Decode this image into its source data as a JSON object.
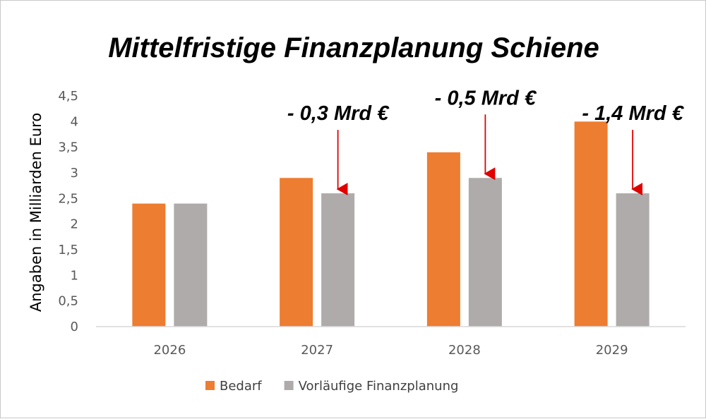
{
  "chart_data": {
    "type": "bar",
    "title": "Mittelfristige Finanzplanung Schiene",
    "ylabel": "Angaben in Milliarden Euro",
    "xlabel": "",
    "categories": [
      "2026",
      "2027",
      "2028",
      "2029"
    ],
    "ylim": [
      0,
      4.5
    ],
    "yticks": [
      "0",
      "0,5",
      "1",
      "1,5",
      "2",
      "2,5",
      "3",
      "3,5",
      "4",
      "4,5"
    ],
    "yticks_values": [
      0,
      0.5,
      1,
      1.5,
      2,
      2.5,
      3,
      3.5,
      4,
      4.5
    ],
    "series": [
      {
        "name": "Bedarf",
        "values": [
          2.4,
          2.9,
          3.4,
          4.0
        ],
        "color": "#ED7D31"
      },
      {
        "name": "Vorläufige Finanzplanung",
        "values": [
          2.4,
          2.6,
          2.9,
          2.6
        ],
        "color": "#AFABAB"
      }
    ],
    "annotations": [
      {
        "category": "2027",
        "text": "- 0,3 Mrd €"
      },
      {
        "category": "2028",
        "text": "- 0,5 Mrd €"
      },
      {
        "category": "2029",
        "text": "- 1,4 Mrd €"
      }
    ],
    "arrow_color": "#E00000",
    "legend_position": "bottom",
    "grid": false
  }
}
